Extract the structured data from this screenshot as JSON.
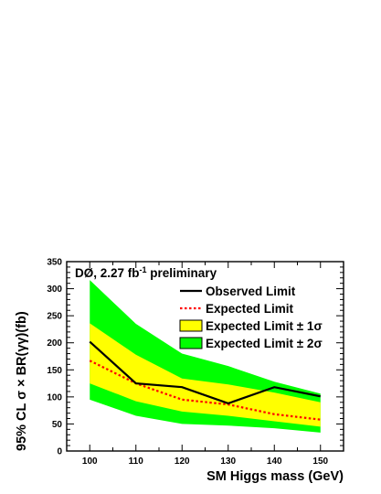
{
  "chart_data": {
    "type": "line",
    "title": "DØ, 2.27 fb",
    "title_superscript": "-1",
    "title_suffix": " preliminary",
    "xlabel": "SM Higgs mass (GeV)",
    "ylabel": "95% CL σ × BR(γγ)(fb)",
    "xlim": [
      95,
      155
    ],
    "ylim": [
      0,
      350
    ],
    "x_ticks": [
      100,
      110,
      120,
      130,
      140,
      150
    ],
    "y_ticks": [
      0,
      50,
      100,
      150,
      200,
      250,
      300,
      350
    ],
    "x": [
      100,
      110,
      120,
      130,
      140,
      150
    ],
    "series": [
      {
        "name": "Observed Limit",
        "values": [
          202,
          125,
          118,
          88,
          118,
          101
        ],
        "color": "#000000",
        "style": "solid"
      },
      {
        "name": "Expected Limit",
        "values": [
          167,
          125,
          95,
          86,
          68,
          58
        ],
        "color": "#ff0000",
        "style": "dotted"
      }
    ],
    "bands": [
      {
        "name": "Expected Limit ± 2σ",
        "color": "#00ff00",
        "upper": [
          316,
          235,
          180,
          157,
          128,
          106
        ],
        "lower": [
          95,
          65,
          50,
          47,
          42,
          34
        ]
      },
      {
        "name": "Expected Limit ± 1σ",
        "color": "#ffff00",
        "upper": [
          236,
          178,
          134,
          123,
          108,
          90
        ],
        "lower": [
          125,
          92,
          73,
          65,
          55,
          45
        ]
      }
    ],
    "legend": [
      {
        "label": "Observed Limit",
        "kind": "line-solid",
        "color": "#000000"
      },
      {
        "label": "Expected Limit",
        "kind": "line-dotted",
        "color": "#ff0000"
      },
      {
        "label": "Expected Limit ± 1σ",
        "kind": "box",
        "color": "#ffff00"
      },
      {
        "label": "Expected Limit ± 2σ",
        "kind": "box",
        "color": "#00ff00"
      }
    ],
    "legend_placement": "top-right",
    "grid": false
  }
}
